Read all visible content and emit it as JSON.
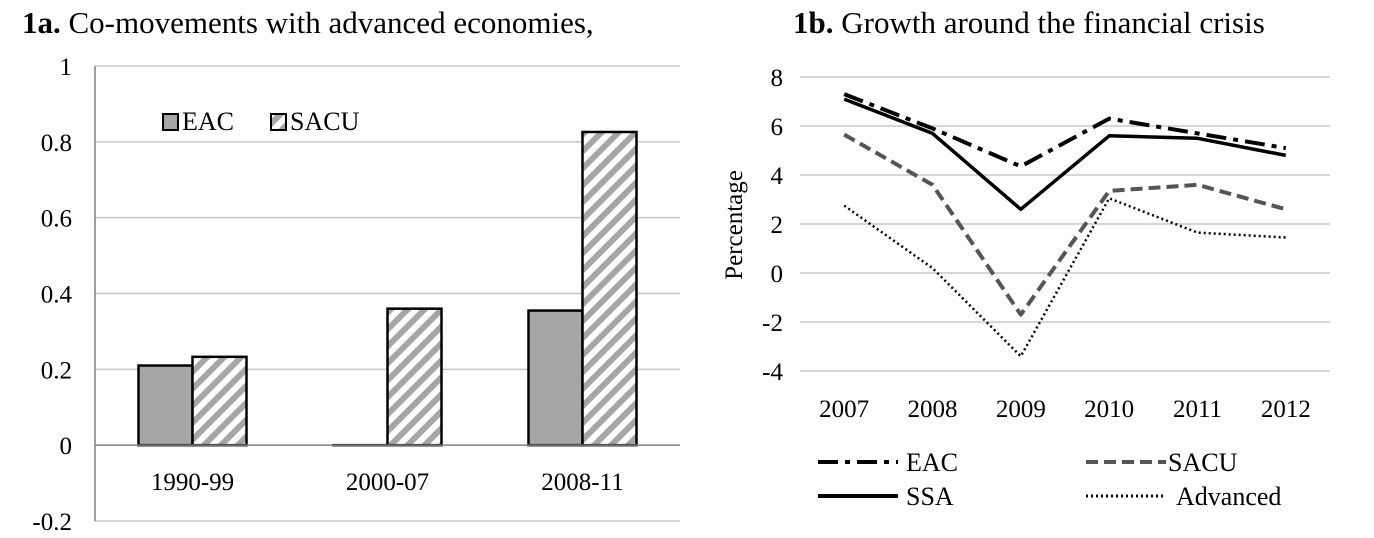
{
  "chart_data": [
    {
      "type": "bar",
      "title_number": "1a.",
      "title": "Co-movements with advanced economies,",
      "xlabel": "",
      "ylabel": "",
      "categories": [
        "1990-99",
        "2000-07",
        "2008-11"
      ],
      "series": [
        {
          "name": "EAC",
          "values": [
            0.21,
            0.0,
            0.355
          ],
          "color": "#a6a6a6",
          "pattern": "solid"
        },
        {
          "name": "SACU",
          "values": [
            0.233,
            0.36,
            0.826
          ],
          "color": "#a6a6a6",
          "pattern": "diagonal-stripes"
        }
      ],
      "ylim": [
        -0.2,
        1
      ],
      "yticks": [
        "-0.2",
        "0",
        "0.2",
        "0.4",
        "0.6",
        "0.8",
        "1"
      ],
      "grid": true,
      "legend": "top-left"
    },
    {
      "type": "line",
      "title_number": "1b.",
      "title": "Growth around the financial crisis",
      "xlabel": "",
      "ylabel": "Percentage",
      "categories": [
        "2007",
        "2008",
        "2009",
        "2010",
        "2011",
        "2012"
      ],
      "series": [
        {
          "name": "EAC",
          "values": [
            7.3,
            5.9,
            4.35,
            6.3,
            5.7,
            5.1
          ],
          "dash": "dash-dot"
        },
        {
          "name": "SACU",
          "values": [
            5.65,
            3.6,
            -1.7,
            3.35,
            3.6,
            2.6
          ],
          "dash": "dashed"
        },
        {
          "name": "SSA",
          "values": [
            7.1,
            5.7,
            2.6,
            5.6,
            5.5,
            4.8
          ],
          "dash": "solid"
        },
        {
          "name": "Advanced",
          "values": [
            2.75,
            0.2,
            -3.4,
            3.05,
            1.65,
            1.45
          ],
          "dash": "dotted"
        }
      ],
      "ylim": [
        -4,
        8
      ],
      "yticks": [
        "-4",
        "-2",
        "0",
        "2",
        "4",
        "6",
        "8"
      ],
      "grid": true,
      "legend": "bottom"
    }
  ]
}
